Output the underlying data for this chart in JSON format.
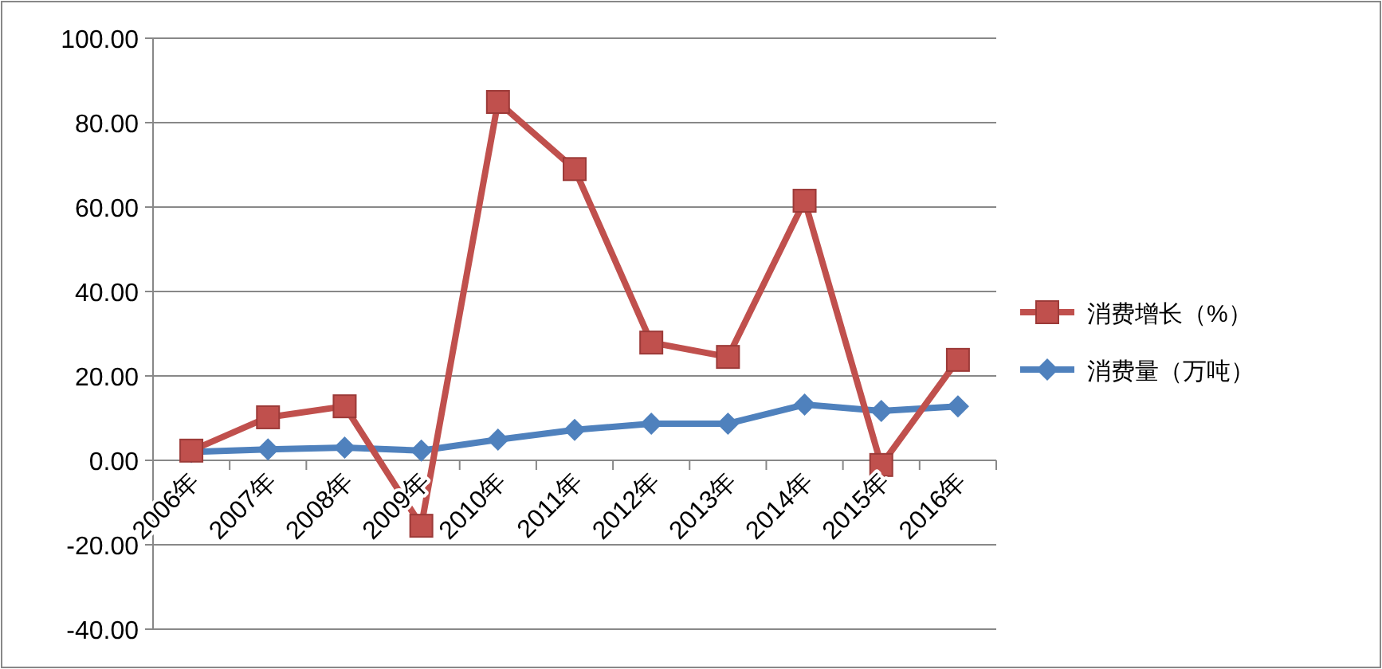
{
  "chart_data": {
    "type": "line",
    "categories": [
      "2006年",
      "2007年",
      "2008年",
      "2009年",
      "2010年",
      "2011年",
      "2012年",
      "2013年",
      "2014年",
      "2015年",
      "2016年"
    ],
    "series": [
      {
        "name": "消费量（万吨）",
        "color": "#4f81bd",
        "marker": "diamond",
        "values": [
          2.0,
          2.6,
          3.0,
          2.3,
          4.9,
          7.2,
          8.7,
          8.7,
          13.2,
          11.7,
          12.8
        ]
      },
      {
        "name": "消费增长（%）",
        "color": "#c0504d",
        "marker": "square",
        "values": [
          2.3,
          10.2,
          12.8,
          -15.5,
          84.9,
          69.0,
          27.9,
          24.5,
          61.5,
          -1.1,
          23.8
        ]
      }
    ],
    "ylim": [
      -40,
      100
    ],
    "yticks": [
      {
        "value": -40,
        "label": "-40.00"
      },
      {
        "value": -20,
        "label": "-20.00"
      },
      {
        "value": 0,
        "label": "0.00"
      },
      {
        "value": 20,
        "label": "20.00"
      },
      {
        "value": 40,
        "label": "40.00"
      },
      {
        "value": 60,
        "label": "60.00"
      },
      {
        "value": 80,
        "label": "80.00"
      },
      {
        "value": 100,
        "label": "100.00"
      }
    ],
    "grid": "y",
    "legend": "right",
    "line_style": "solid"
  }
}
